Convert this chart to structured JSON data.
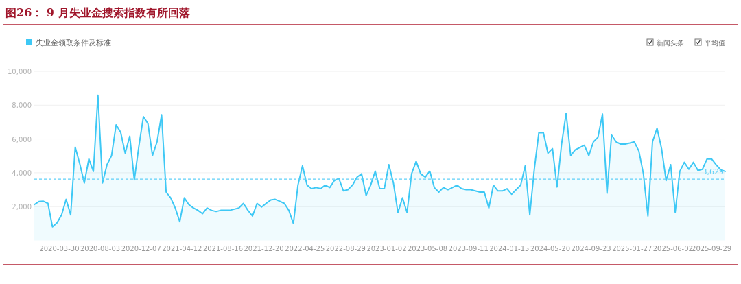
{
  "chart_data": {
    "type": "area",
    "title": "图26：  9 月失业金搜索指数有所回落",
    "annotations": [
      "新闻头条",
      "平均值"
    ],
    "x": [
      "2020-01-13",
      "2020-01-27",
      "2020-02-10",
      "2020-02-24",
      "2020-03-09",
      "2020-03-23",
      "2020-04-06",
      "2020-04-20",
      "2020-05-04",
      "2020-05-18",
      "2020-06-01",
      "2020-06-15",
      "2020-06-29",
      "2020-07-13",
      "2020-07-27",
      "2020-08-10",
      "2020-08-24",
      "2020-09-07",
      "2020-09-21",
      "2020-10-05",
      "2020-10-19",
      "2020-11-02",
      "2020-11-16",
      "2020-11-30",
      "2020-12-14",
      "2020-12-28",
      "2021-01-11",
      "2021-01-25",
      "2021-02-08",
      "2021-02-22",
      "2021-03-08",
      "2021-03-22",
      "2021-04-05",
      "2021-04-19",
      "2021-05-03",
      "2021-05-17",
      "2021-05-31",
      "2021-06-14",
      "2021-06-28",
      "2021-07-12",
      "2021-07-26",
      "2021-08-09",
      "2021-08-23",
      "2021-09-06",
      "2021-09-20",
      "2021-10-04",
      "2021-10-18",
      "2021-11-01",
      "2021-11-15",
      "2021-11-29",
      "2021-12-13",
      "2021-12-27",
      "2022-01-10",
      "2022-01-24",
      "2022-02-07",
      "2022-02-21",
      "2022-03-07",
      "2022-03-21",
      "2022-04-04",
      "2022-04-18",
      "2022-05-02",
      "2022-05-16",
      "2022-05-30",
      "2022-06-13",
      "2022-06-27",
      "2022-07-11",
      "2022-07-25",
      "2022-08-08",
      "2022-08-22",
      "2022-09-05",
      "2022-09-19",
      "2022-10-03",
      "2022-10-17",
      "2022-10-31",
      "2022-11-14",
      "2022-11-28",
      "2022-12-12",
      "2022-12-26",
      "2023-01-09",
      "2023-01-23",
      "2023-02-06",
      "2023-02-20",
      "2023-03-06",
      "2023-03-20",
      "2023-04-03",
      "2023-04-17",
      "2023-05-01",
      "2023-05-15",
      "2023-05-29",
      "2023-06-12",
      "2023-06-26",
      "2023-07-10",
      "2023-07-24",
      "2023-08-07",
      "2023-08-21",
      "2023-09-04",
      "2023-09-18",
      "2023-10-02",
      "2023-10-16",
      "2023-10-30",
      "2023-11-13",
      "2023-11-27",
      "2023-12-11",
      "2023-12-25",
      "2024-01-08",
      "2024-01-22",
      "2024-02-05",
      "2024-02-19",
      "2024-03-04",
      "2024-03-18",
      "2024-04-01",
      "2024-04-15",
      "2024-04-29",
      "2024-05-13",
      "2024-05-27",
      "2024-06-10",
      "2024-06-24",
      "2024-07-08",
      "2024-07-22",
      "2024-08-05",
      "2024-08-19",
      "2024-09-02",
      "2024-09-16",
      "2024-09-30",
      "2024-10-14",
      "2024-10-28",
      "2024-11-11",
      "2024-11-25",
      "2024-12-09",
      "2024-12-23",
      "2025-01-06",
      "2025-01-20",
      "2025-02-03",
      "2025-02-17",
      "2025-03-03",
      "2025-03-17",
      "2025-03-31",
      "2025-04-14",
      "2025-04-28",
      "2025-05-12",
      "2025-05-26",
      "2025-06-09",
      "2025-06-23",
      "2025-07-07",
      "2025-07-21",
      "2025-08-04",
      "2025-08-18",
      "2025-09-01",
      "2025-09-15",
      "2025-09-29",
      "2025-10-13",
      "2025-10-27",
      "2025-11-10"
    ],
    "series": [
      {
        "name": "失业金领取条件及标准",
        "color": "#3ec8f5",
        "values": [
          2120,
          2300,
          2320,
          2190,
          800,
          1040,
          1510,
          2430,
          1510,
          5520,
          4530,
          3400,
          4820,
          4080,
          8590,
          3400,
          4480,
          5020,
          6840,
          6400,
          5160,
          6170,
          3580,
          5560,
          7320,
          6910,
          5020,
          5830,
          7430,
          2860,
          2520,
          1920,
          1110,
          2520,
          2120,
          1920,
          1780,
          1580,
          1920,
          1780,
          1710,
          1780,
          1780,
          1780,
          1850,
          1920,
          2190,
          1780,
          1440,
          2190,
          1980,
          2190,
          2390,
          2430,
          2320,
          2190,
          1780,
          1000,
          3270,
          4410,
          3270,
          3060,
          3130,
          3060,
          3270,
          3130,
          3540,
          3670,
          2930,
          3000,
          3270,
          3740,
          3940,
          2660,
          3270,
          4100,
          3060,
          3060,
          4480,
          3400,
          1650,
          2520,
          1650,
          3940,
          4680,
          3940,
          3740,
          4100,
          3130,
          2860,
          3130,
          3000,
          3130,
          3270,
          3060,
          3000,
          3000,
          2930,
          2860,
          2860,
          1920,
          3270,
          2930,
          2930,
          3060,
          2730,
          3000,
          3270,
          4410,
          1510,
          4210,
          6370,
          6370,
          5160,
          5430,
          3160,
          5700,
          7520,
          5020,
          5360,
          5490,
          5630,
          5020,
          5830,
          6100,
          7480,
          2790,
          6240,
          5830,
          5700,
          5700,
          5760,
          5830,
          5290,
          3940,
          1440,
          5830,
          6640,
          5430,
          3540,
          4480,
          1670,
          4080,
          4620,
          4210,
          4620,
          4140,
          4210,
          4820,
          4820,
          4480,
          4180,
          4080
        ]
      }
    ],
    "xlim": [
      "2020-01-13",
      "2025-11-10"
    ],
    "xticks": [
      "2020-03-30",
      "2020-08-03",
      "2020-12-07",
      "2021-04-12",
      "2021-08-16",
      "2021-12-20",
      "2022-04-25",
      "2022-08-29",
      "2023-01-02",
      "2023-05-08",
      "2023-09-11",
      "2024-01-15",
      "2024-05-20",
      "2024-09-23",
      "2025-01-27",
      "2025-06-02",
      "2025-09-29"
    ],
    "ylim": [
      0,
      10000
    ],
    "yticks": [
      {
        "value": 2000,
        "label": "2,000"
      },
      {
        "value": 4000,
        "label": "4,000"
      },
      {
        "value": 6000,
        "label": "6,000"
      },
      {
        "value": 8000,
        "label": "8,000"
      },
      {
        "value": 10000,
        "label": "10,000"
      }
    ],
    "ref_lines": [
      {
        "axis": "y",
        "value": 3629,
        "label": "3,629",
        "color": "#5fd0f7",
        "line_style": "dashed"
      }
    ],
    "grid": "y",
    "legend": "top left",
    "marker": "none",
    "line_style": "solid"
  }
}
